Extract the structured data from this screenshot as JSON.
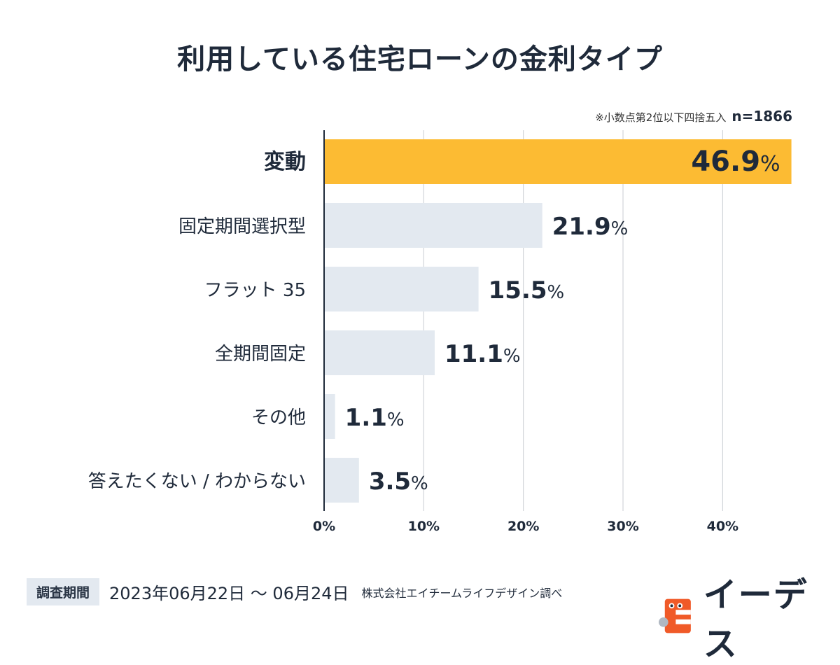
{
  "title": "利用している住宅ローンの金利タイプ",
  "note": {
    "rounding": "※小数点第2位以下四捨五入",
    "n": "n=1866"
  },
  "footer": {
    "period_label": "調査期間",
    "period": "2023年06月22日 〜 06月24日",
    "credit": "株式会社エイチームライフデザイン調べ"
  },
  "logo": {
    "text": "イーデス"
  },
  "colors": {
    "highlight_bar": "#fcbb33",
    "bar": "#e3e9f0",
    "axis": "#1f2a3a",
    "grid": "#c9cdd2",
    "text": "#1f2a3a"
  },
  "chart_data": {
    "type": "bar",
    "orientation": "horizontal",
    "title": "利用している住宅ローンの金利タイプ",
    "categories": [
      "変動",
      "固定期間選択型",
      "フラット 35",
      "全期間固定",
      "その他",
      "答えたくない / わからない"
    ],
    "values": [
      46.9,
      21.9,
      15.5,
      11.1,
      1.1,
      3.5
    ],
    "value_labels": [
      "46.9",
      "21.9",
      "15.5",
      "11.1",
      "1.1",
      "3.5"
    ],
    "unit": "%",
    "highlight_index": 0,
    "xlim": [
      0,
      47
    ],
    "xticks": [
      0,
      10,
      20,
      30,
      40
    ],
    "xtick_labels": [
      "0%",
      "10%",
      "20%",
      "30%",
      "40%"
    ],
    "grid": true
  }
}
